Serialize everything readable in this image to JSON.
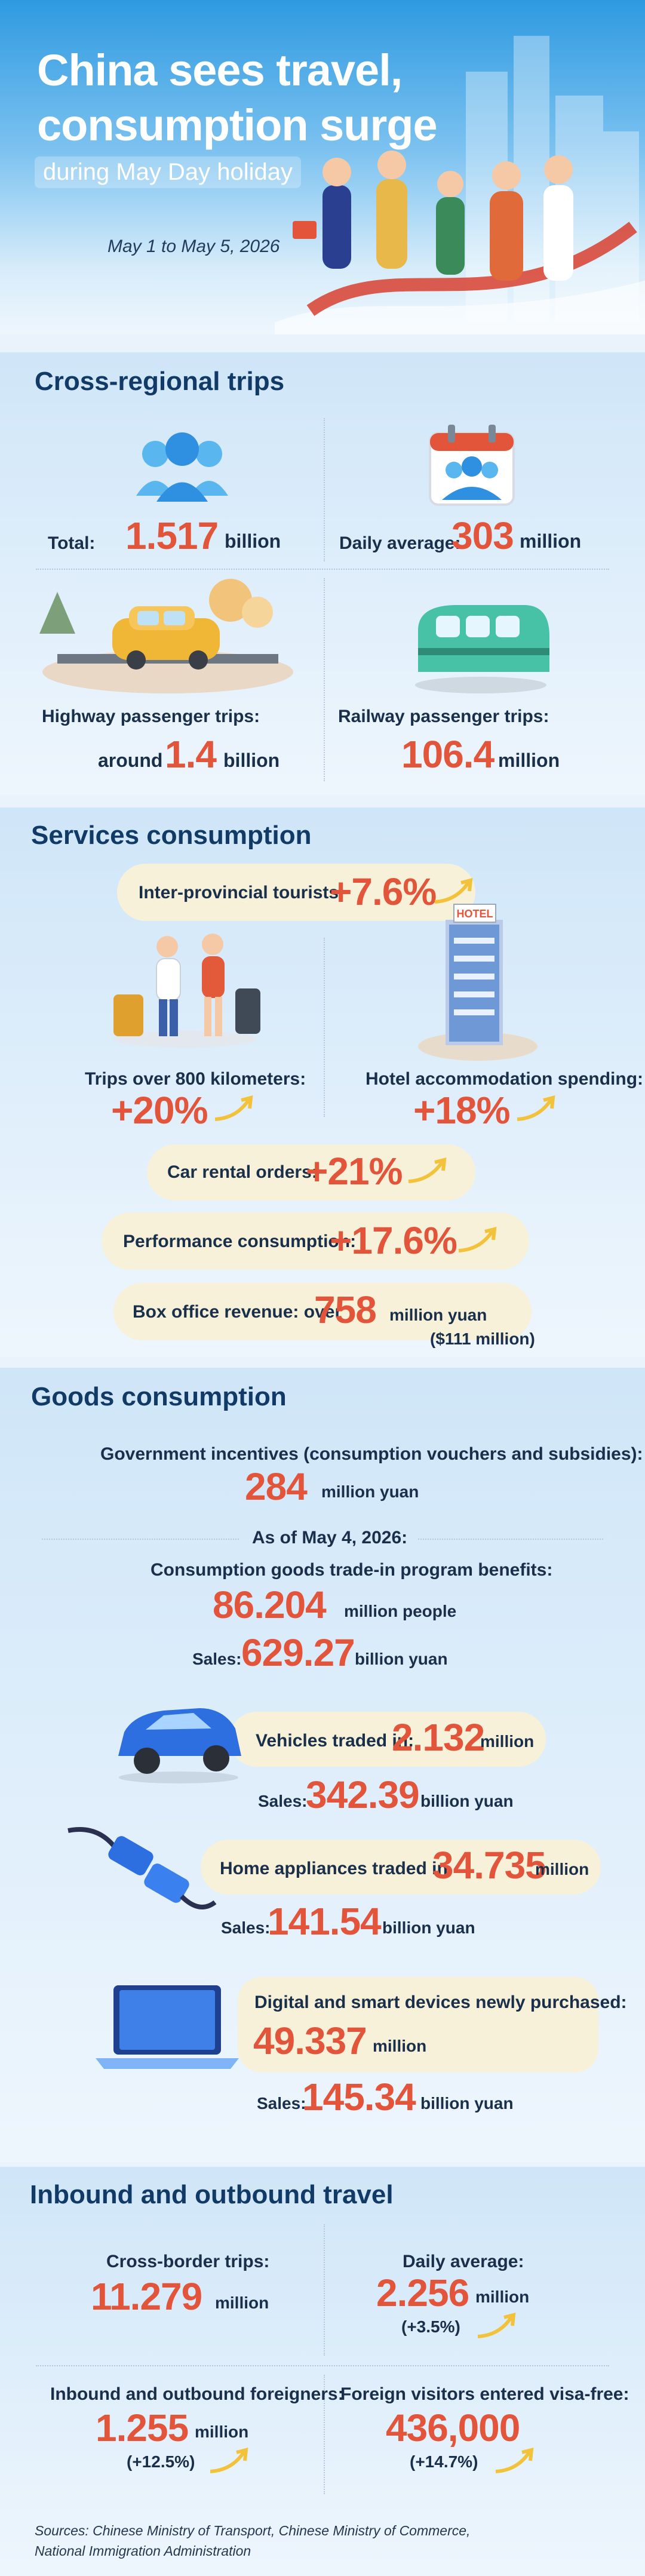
{
  "header": {
    "title": "China sees travel, consumption surge",
    "subtitle": "during May Day holiday",
    "date": "May 1 to May 5, 2026"
  },
  "cross_regional": {
    "title": "Cross-regional trips",
    "total_label": "Total:",
    "total_value": "1.517",
    "total_unit": "billion",
    "daily_label": "Daily average:",
    "daily_value": "303",
    "daily_unit": "million",
    "highway_label": "Highway passenger trips:",
    "highway_prefix": "around",
    "highway_value": "1.4",
    "highway_unit": "billion",
    "railway_label": "Railway passenger trips:",
    "railway_value": "106.4",
    "railway_unit": "million"
  },
  "services": {
    "title": "Services consumption",
    "inter_label": "Inter-provincial tourists:",
    "inter_value": "+7.6%",
    "trips800_label": "Trips over 800 kilometers:",
    "trips800_value": "+20%",
    "hotel_label": "Hotel accommodation spending:",
    "hotel_value": "+18%",
    "car_label": "Car rental orders:",
    "car_value": "+21%",
    "perf_label": "Performance consumption:",
    "perf_value": "+17.6%",
    "box_label": "Box office revenue: over",
    "box_value": "758",
    "box_unit": "million yuan",
    "box_usd": "($111 million)",
    "hotel_sign": "HOTEL"
  },
  "goods": {
    "title": "Goods consumption",
    "gov_label": "Government incentives (consumption vouchers and subsidies):",
    "gov_value": "284",
    "gov_unit": "million yuan",
    "asof": "As of May 4, 2026:",
    "tradein_label": "Consumption goods trade-in program benefits:",
    "tradein_value": "86.204",
    "tradein_unit": "million people",
    "sales_label": "Sales:",
    "tradein_sales": "629.27",
    "tradein_sales_unit": "billion yuan",
    "veh_label": "Vehicles traded in:",
    "veh_value": "2.132",
    "veh_unit": "million",
    "veh_sales": "342.39",
    "veh_sales_unit": "billion yuan",
    "home_label": "Home appliances traded in",
    "home_value": "34.735",
    "home_unit": "million",
    "home_sales": "141.54",
    "home_sales_unit": "billion yuan",
    "digital_label": "Digital and smart devices newly purchased:",
    "digital_value": "49.337",
    "digital_unit": "million",
    "digital_sales": "145.34",
    "digital_sales_unit": "billion yuan"
  },
  "travel": {
    "title": "Inbound and outbound travel",
    "cross_label": "Cross-border trips:",
    "cross_value": "11.279",
    "cross_unit": "million",
    "daily_label": "Daily average:",
    "daily_value": "2.256",
    "daily_unit": "million",
    "daily_change": "(+3.5%)",
    "foreigners_label": "Inbound and outbound foreigners:",
    "foreigners_value": "1.255",
    "foreigners_unit": "million",
    "foreigners_change": "(+12.5%)",
    "visa_label": "Foreign visitors entered visa-free:",
    "visa_value": "436,000",
    "visa_change": "(+14.7%)"
  },
  "sources": {
    "line1": "Sources: Chinese Ministry of Transport, Chinese Ministry of Commerce,",
    "line2": "National Immigration Administration"
  },
  "colors": {
    "accent": "#e2553b",
    "heading": "#123a66",
    "pill": "#f7f1d9",
    "arrow": "#f2c23a"
  }
}
